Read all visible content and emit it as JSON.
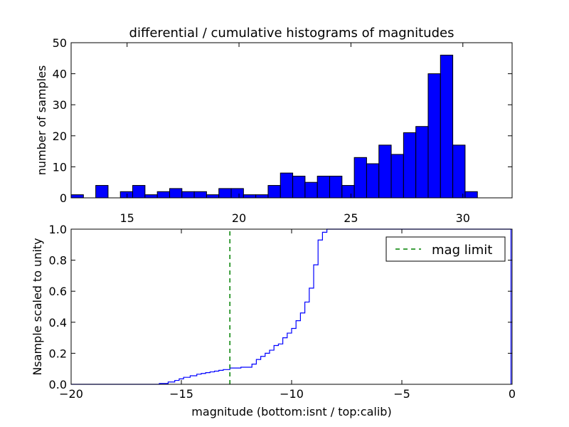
{
  "figure_title": "differential / cumulative histograms of magnitudes",
  "chart_data": [
    {
      "type": "bar",
      "panel": "top",
      "title": "differential / cumulative histograms of magnitudes",
      "ylabel": "number of samples",
      "xlim": [
        12.5,
        32.2
      ],
      "ylim": [
        0,
        50
      ],
      "xticks": [
        15,
        20,
        25,
        30
      ],
      "xtick_labels": [
        "15",
        "20",
        "25",
        "30"
      ],
      "yticks": [
        0,
        10,
        20,
        30,
        40,
        50
      ],
      "ytick_labels": [
        "0",
        "10",
        "20",
        "30",
        "40",
        "50"
      ],
      "x_ticklabels_position": "bottom",
      "bin_edges": [
        12.5,
        13.05,
        13.6,
        14.15,
        14.7,
        15.25,
        15.8,
        16.35,
        16.9,
        17.45,
        18.0,
        18.55,
        19.1,
        19.65,
        20.2,
        20.75,
        21.3,
        21.85,
        22.4,
        22.95,
        23.5,
        24.05,
        24.6,
        25.15,
        25.7,
        26.25,
        26.8,
        27.35,
        27.9,
        28.45,
        29.0,
        29.55,
        30.1,
        30.65
      ],
      "values": [
        1,
        0,
        4,
        0,
        2,
        4,
        1,
        2,
        3,
        2,
        2,
        1,
        3,
        3,
        1,
        1,
        4,
        8,
        7,
        5,
        7,
        7,
        4,
        13,
        11,
        17,
        14,
        21,
        23,
        40,
        46,
        17,
        2
      ],
      "bar_color": "#0000ff",
      "grid": false
    },
    {
      "type": "line",
      "panel": "bottom",
      "xlabel": "magnitude (bottom:isnt / top:calib)",
      "ylabel": "Nsample scaled to unity",
      "xlim": [
        -20,
        0
      ],
      "ylim": [
        0,
        1.0
      ],
      "xticks": [
        -20,
        -15,
        -10,
        -5,
        0
      ],
      "xtick_labels": [
        "−20",
        "−15",
        "−10",
        "−5",
        "0"
      ],
      "yticks": [
        0,
        0.2,
        0.4,
        0.6,
        0.8,
        1.0
      ],
      "ytick_labels": [
        "0.0",
        "0.2",
        "0.4",
        "0.6",
        "0.8",
        "1.0"
      ],
      "series": [
        {
          "name": "",
          "color": "#0000ff",
          "drawstyle": "steps",
          "x": [
            -20.0,
            -16.0,
            -15.6,
            -15.3,
            -15.1,
            -14.9,
            -14.6,
            -14.3,
            -14.1,
            -13.9,
            -13.7,
            -13.5,
            -13.3,
            -13.1,
            -12.8,
            -12.3,
            -11.8,
            -11.6,
            -11.4,
            -11.2,
            -11.0,
            -10.8,
            -10.6,
            -10.4,
            -10.2,
            -10.0,
            -9.8,
            -9.6,
            -9.4,
            -9.2,
            -9.0,
            -8.8,
            -8.6,
            -8.4,
            -8.2,
            -8.0,
            -0.05
          ],
          "y": [
            0.0,
            0.005,
            0.015,
            0.025,
            0.035,
            0.045,
            0.055,
            0.065,
            0.07,
            0.075,
            0.08,
            0.085,
            0.09,
            0.095,
            0.105,
            0.11,
            0.13,
            0.16,
            0.18,
            0.2,
            0.22,
            0.25,
            0.26,
            0.3,
            0.33,
            0.36,
            0.41,
            0.46,
            0.53,
            0.62,
            0.77,
            0.93,
            0.98,
            1.0,
            1.0,
            1.0,
            1.0
          ]
        },
        {
          "name": "mag limit",
          "color": "#008000",
          "linestyle": "dashed",
          "x": [
            -12.8,
            -12.8
          ],
          "y": [
            0,
            1.0
          ]
        }
      ],
      "legend": {
        "position": "top-right",
        "entries": [
          "mag limit"
        ]
      },
      "grid": false
    }
  ]
}
